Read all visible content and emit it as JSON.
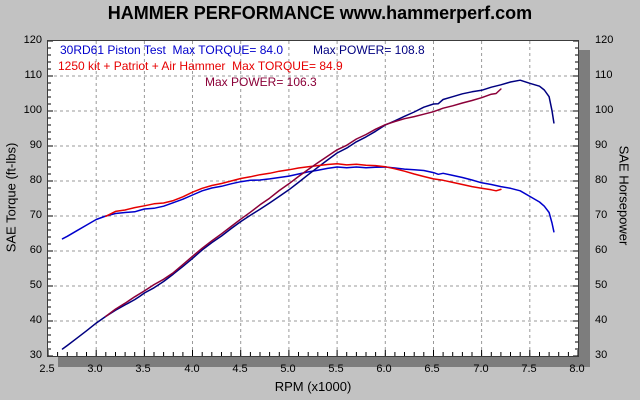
{
  "header": {
    "title": "HAMMER PERFORMANCE www.hammerperf.com"
  },
  "legend": {
    "run1_torque_label": "30RD61 Piston Test  Max TORQUE= 84.0",
    "run1_power_label": "Max POWER= 108.8",
    "run2_torque_label": "1250 kit + Patriot + Air Hammer  Max TORQUE= 84.9",
    "run2_power_label": "Max POWER= 106.3"
  },
  "colors": {
    "background": "#c2c2c2",
    "plot_background": "#ffffff",
    "plot_border": "#3c3c3c",
    "plot_shadow": "#7d7d7d",
    "grid": "#999999",
    "run1_torque": "#0000cc",
    "run1_power": "#000080",
    "run2_torque": "#e60000",
    "run2_power": "#8b0038",
    "text": "#000000"
  },
  "chart_data": {
    "type": "line",
    "title": "HAMMER PERFORMANCE www.hammerperf.com",
    "xlabel": "RPM (x1000)",
    "ylabel_left": "SAE Torque (ft-lbs)",
    "ylabel_right": "SAE Horsepower",
    "xlim": [
      2.5,
      8.0
    ],
    "ylim": [
      30,
      120
    ],
    "x_tick_labels": [
      "2.5",
      "3.0",
      "3.5",
      "4.0",
      "4.5",
      "5.0",
      "5.5",
      "6.0",
      "6.5",
      "7.0",
      "7.5",
      "8.0"
    ],
    "y_tick_labels": [
      "30",
      "40",
      "50",
      "60",
      "70",
      "80",
      "90",
      "100",
      "110",
      "120"
    ],
    "x_minor_step": 0.1,
    "y_minor_step": 2,
    "grid": true,
    "grid_style": "dashed",
    "legend_position": "top-left-inside",
    "series": [
      {
        "name": "30RD61 Piston Test - SAE Torque (ft-lbs)",
        "max_value": 84.0,
        "color_key": "run1_torque",
        "points": [
          [
            2.65,
            63.5
          ],
          [
            2.7,
            64.2
          ],
          [
            2.8,
            65.8
          ],
          [
            2.9,
            67.4
          ],
          [
            3.0,
            69.0
          ],
          [
            3.1,
            70.0
          ],
          [
            3.2,
            70.7
          ],
          [
            3.3,
            71.0
          ],
          [
            3.4,
            71.2
          ],
          [
            3.45,
            71.6
          ],
          [
            3.5,
            72.0
          ],
          [
            3.6,
            72.2
          ],
          [
            3.7,
            72.8
          ],
          [
            3.8,
            73.8
          ],
          [
            3.9,
            74.8
          ],
          [
            4.0,
            76.0
          ],
          [
            4.1,
            77.2
          ],
          [
            4.2,
            78.0
          ],
          [
            4.3,
            78.5
          ],
          [
            4.4,
            79.2
          ],
          [
            4.5,
            79.8
          ],
          [
            4.6,
            80.2
          ],
          [
            4.7,
            80.3
          ],
          [
            4.8,
            80.6
          ],
          [
            4.9,
            81.0
          ],
          [
            5.0,
            81.4
          ],
          [
            5.1,
            82.0
          ],
          [
            5.2,
            82.6
          ],
          [
            5.3,
            83.1
          ],
          [
            5.4,
            83.6
          ],
          [
            5.5,
            84.0
          ],
          [
            5.6,
            83.8
          ],
          [
            5.7,
            84.0
          ],
          [
            5.8,
            83.8
          ],
          [
            5.9,
            83.9
          ],
          [
            6.0,
            84.0
          ],
          [
            6.1,
            83.7
          ],
          [
            6.2,
            83.4
          ],
          [
            6.3,
            83.2
          ],
          [
            6.4,
            83.0
          ],
          [
            6.5,
            82.4
          ],
          [
            6.55,
            81.9
          ],
          [
            6.6,
            82.2
          ],
          [
            6.7,
            81.6
          ],
          [
            6.8,
            81.0
          ],
          [
            6.9,
            80.3
          ],
          [
            7.0,
            79.5
          ],
          [
            7.1,
            79.0
          ],
          [
            7.2,
            78.4
          ],
          [
            7.3,
            77.9
          ],
          [
            7.4,
            77.2
          ],
          [
            7.5,
            75.6
          ],
          [
            7.6,
            74.0
          ],
          [
            7.65,
            72.8
          ],
          [
            7.7,
            71.0
          ],
          [
            7.73,
            68.0
          ],
          [
            7.75,
            65.5
          ]
        ]
      },
      {
        "name": "30RD61 Piston Test - SAE Horsepower",
        "max_value": 108.8,
        "color_key": "run1_power",
        "points": [
          [
            2.65,
            32.0
          ],
          [
            2.7,
            33.0
          ],
          [
            2.8,
            35.1
          ],
          [
            2.9,
            37.2
          ],
          [
            3.0,
            39.4
          ],
          [
            3.1,
            41.3
          ],
          [
            3.2,
            43.1
          ],
          [
            3.3,
            44.6
          ],
          [
            3.4,
            46.1
          ],
          [
            3.45,
            47.0
          ],
          [
            3.5,
            48.0
          ],
          [
            3.6,
            49.5
          ],
          [
            3.7,
            51.3
          ],
          [
            3.8,
            53.4
          ],
          [
            3.9,
            55.6
          ],
          [
            4.0,
            57.9
          ],
          [
            4.1,
            60.3
          ],
          [
            4.2,
            62.4
          ],
          [
            4.3,
            64.3
          ],
          [
            4.4,
            66.4
          ],
          [
            4.5,
            68.4
          ],
          [
            4.6,
            70.2
          ],
          [
            4.7,
            71.9
          ],
          [
            4.8,
            73.7
          ],
          [
            4.9,
            75.6
          ],
          [
            5.0,
            77.5
          ],
          [
            5.1,
            79.6
          ],
          [
            5.2,
            81.8
          ],
          [
            5.3,
            83.9
          ],
          [
            5.4,
            86.0
          ],
          [
            5.5,
            88.0
          ],
          [
            5.6,
            89.4
          ],
          [
            5.7,
            91.2
          ],
          [
            5.8,
            92.6
          ],
          [
            5.9,
            94.2
          ],
          [
            6.0,
            96.0
          ],
          [
            6.1,
            97.2
          ],
          [
            6.2,
            98.5
          ],
          [
            6.3,
            99.7
          ],
          [
            6.4,
            101.1
          ],
          [
            6.5,
            102.0
          ],
          [
            6.55,
            102.1
          ],
          [
            6.6,
            103.3
          ],
          [
            6.7,
            104.1
          ],
          [
            6.8,
            104.9
          ],
          [
            6.9,
            105.5
          ],
          [
            7.0,
            105.9
          ],
          [
            7.1,
            106.8
          ],
          [
            7.2,
            107.5
          ],
          [
            7.3,
            108.3
          ],
          [
            7.4,
            108.8
          ],
          [
            7.5,
            107.9
          ],
          [
            7.6,
            107.1
          ],
          [
            7.65,
            106.0
          ],
          [
            7.7,
            104.1
          ],
          [
            7.73,
            100.1
          ],
          [
            7.75,
            96.6
          ]
        ]
      },
      {
        "name": "1250 kit + Patriot + Air Hammer - SAE Torque (ft-lbs)",
        "max_value": 84.9,
        "color_key": "run2_torque",
        "points": [
          [
            3.1,
            69.9
          ],
          [
            3.2,
            71.3
          ],
          [
            3.3,
            71.7
          ],
          [
            3.4,
            72.4
          ],
          [
            3.5,
            72.9
          ],
          [
            3.6,
            73.5
          ],
          [
            3.7,
            73.7
          ],
          [
            3.8,
            74.4
          ],
          [
            3.9,
            75.5
          ],
          [
            4.0,
            76.8
          ],
          [
            4.1,
            77.9
          ],
          [
            4.2,
            78.7
          ],
          [
            4.3,
            79.3
          ],
          [
            4.4,
            80.0
          ],
          [
            4.5,
            80.7
          ],
          [
            4.6,
            81.2
          ],
          [
            4.7,
            81.8
          ],
          [
            4.8,
            82.2
          ],
          [
            4.9,
            82.8
          ],
          [
            5.0,
            83.2
          ],
          [
            5.1,
            83.7
          ],
          [
            5.2,
            84.1
          ],
          [
            5.3,
            84.4
          ],
          [
            5.4,
            84.7
          ],
          [
            5.5,
            84.9
          ],
          [
            5.6,
            84.6
          ],
          [
            5.7,
            84.8
          ],
          [
            5.8,
            84.5
          ],
          [
            5.9,
            84.4
          ],
          [
            6.0,
            84.1
          ],
          [
            6.1,
            83.5
          ],
          [
            6.2,
            82.8
          ],
          [
            6.3,
            82.0
          ],
          [
            6.4,
            81.3
          ],
          [
            6.5,
            80.6
          ],
          [
            6.6,
            80.2
          ],
          [
            6.7,
            79.6
          ],
          [
            6.8,
            79.0
          ],
          [
            6.9,
            78.4
          ],
          [
            7.0,
            77.9
          ],
          [
            7.1,
            77.5
          ],
          [
            7.15,
            77.2
          ],
          [
            7.2,
            77.6
          ]
        ]
      },
      {
        "name": "1250 kit + Patriot + Air Hammer - SAE Horsepower",
        "max_value": 106.3,
        "color_key": "run2_power",
        "points": [
          [
            3.1,
            41.3
          ],
          [
            3.2,
            43.4
          ],
          [
            3.3,
            45.1
          ],
          [
            3.4,
            46.9
          ],
          [
            3.5,
            48.6
          ],
          [
            3.6,
            50.4
          ],
          [
            3.7,
            51.9
          ],
          [
            3.8,
            53.8
          ],
          [
            3.9,
            56.1
          ],
          [
            4.0,
            58.5
          ],
          [
            4.1,
            60.8
          ],
          [
            4.2,
            62.9
          ],
          [
            4.3,
            64.9
          ],
          [
            4.4,
            67.0
          ],
          [
            4.5,
            69.1
          ],
          [
            4.6,
            71.1
          ],
          [
            4.7,
            73.2
          ],
          [
            4.8,
            75.1
          ],
          [
            4.9,
            77.3
          ],
          [
            5.0,
            79.2
          ],
          [
            5.1,
            81.3
          ],
          [
            5.2,
            83.3
          ],
          [
            5.3,
            85.2
          ],
          [
            5.4,
            87.1
          ],
          [
            5.5,
            88.9
          ],
          [
            5.6,
            90.2
          ],
          [
            5.7,
            92.0
          ],
          [
            5.8,
            93.3
          ],
          [
            5.9,
            94.8
          ],
          [
            6.0,
            96.1
          ],
          [
            6.1,
            97.0
          ],
          [
            6.2,
            97.8
          ],
          [
            6.3,
            98.4
          ],
          [
            6.4,
            99.1
          ],
          [
            6.5,
            99.8
          ],
          [
            6.6,
            100.8
          ],
          [
            6.7,
            101.5
          ],
          [
            6.8,
            102.3
          ],
          [
            6.9,
            103.0
          ],
          [
            7.0,
            103.8
          ],
          [
            7.1,
            104.8
          ],
          [
            7.15,
            105.0
          ],
          [
            7.2,
            106.3
          ]
        ]
      }
    ]
  }
}
